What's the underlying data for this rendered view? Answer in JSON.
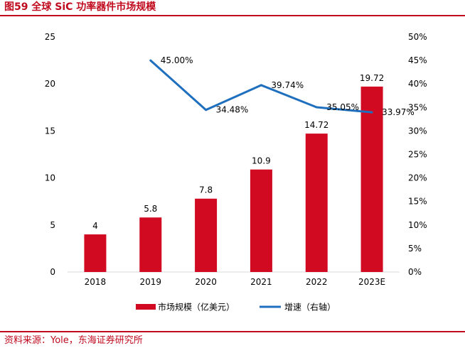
{
  "figure": {
    "title": "图59  全球 SiC 功率器件市场规模",
    "source": "资料来源：Yole，东海证券研究所"
  },
  "colors": {
    "bar": "#d10a22",
    "line": "#1f6fbf",
    "accent": "#c00a1e",
    "axis": "#d9d9d9",
    "text": "#000000"
  },
  "chart_data": {
    "type": "bar",
    "categories": [
      "2018",
      "2019",
      "2020",
      "2021",
      "2022",
      "2023E"
    ],
    "series": [
      {
        "name": "市场规模（亿美元）",
        "type": "bar",
        "axis": "left",
        "values": [
          4,
          5.8,
          7.8,
          10.9,
          14.72,
          19.72
        ],
        "labels": [
          "4",
          "5.8",
          "7.8",
          "10.9",
          "14.72",
          "19.72"
        ]
      },
      {
        "name": "增速（右轴）",
        "type": "line",
        "axis": "right",
        "values": [
          null,
          45.0,
          34.48,
          39.74,
          35.05,
          33.97
        ],
        "labels": [
          null,
          "45.00%",
          "34.48%",
          "39.74%",
          "35.05%",
          "33.97%"
        ]
      }
    ],
    "left_axis": {
      "ylim": [
        0,
        25
      ],
      "ticks": [
        0,
        5,
        10,
        15,
        20,
        25
      ],
      "tick_labels": [
        "0",
        "5",
        "10",
        "15",
        "20",
        "25"
      ]
    },
    "right_axis": {
      "ylim": [
        0,
        50
      ],
      "ticks": [
        0,
        5,
        10,
        15,
        20,
        25,
        30,
        35,
        40,
        45,
        50
      ],
      "tick_labels": [
        "0%",
        "5%",
        "10%",
        "15%",
        "20%",
        "25%",
        "30%",
        "35%",
        "40%",
        "45%",
        "50%"
      ]
    },
    "grid": false,
    "legend": {
      "position": "bottom"
    }
  }
}
